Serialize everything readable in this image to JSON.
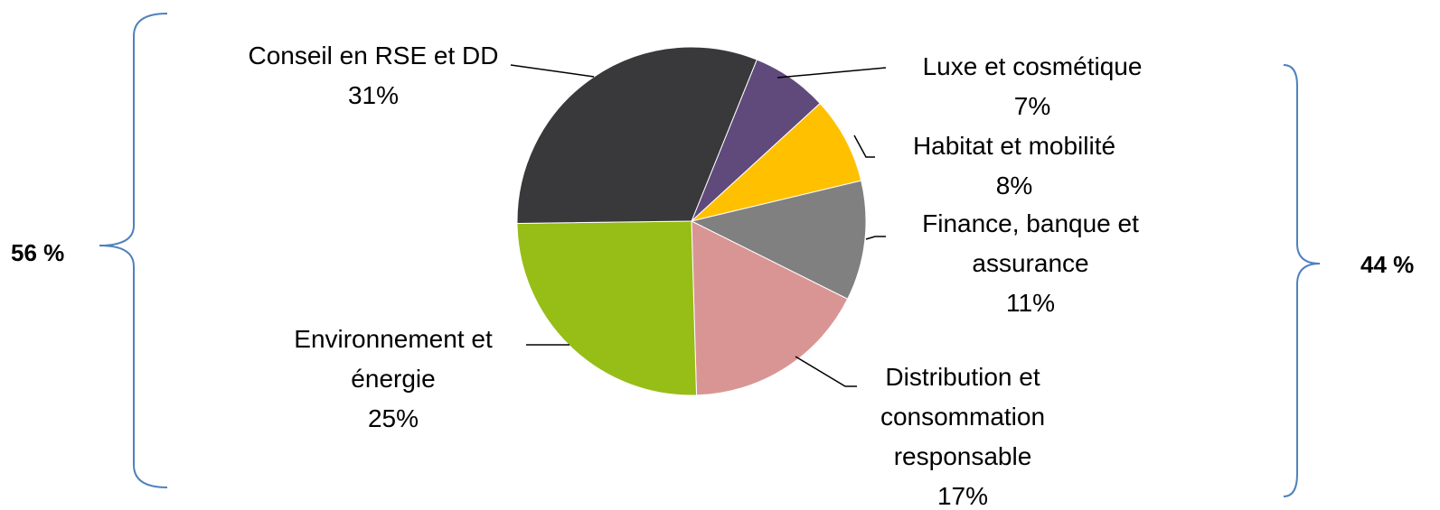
{
  "chart_data": {
    "type": "pie",
    "categories": [
      "Luxe et cosmétique",
      "Habitat et mobilité",
      "Finance, banque et assurance",
      "Distribution et consommation responsable",
      "Environnement et énergie",
      "Conseil en RSE et DD"
    ],
    "values": [
      7,
      8,
      11,
      17,
      25,
      31
    ],
    "value_labels": [
      "7%",
      "8%",
      "11%",
      "17%",
      "25%",
      "31%"
    ],
    "colors": [
      "#604a7b",
      "#ffc000",
      "#808080",
      "#d99594",
      "#97bd17",
      "#39393b"
    ],
    "annotations": [
      {
        "text": "56 %"
      },
      {
        "text": "44 %"
      }
    ]
  }
}
